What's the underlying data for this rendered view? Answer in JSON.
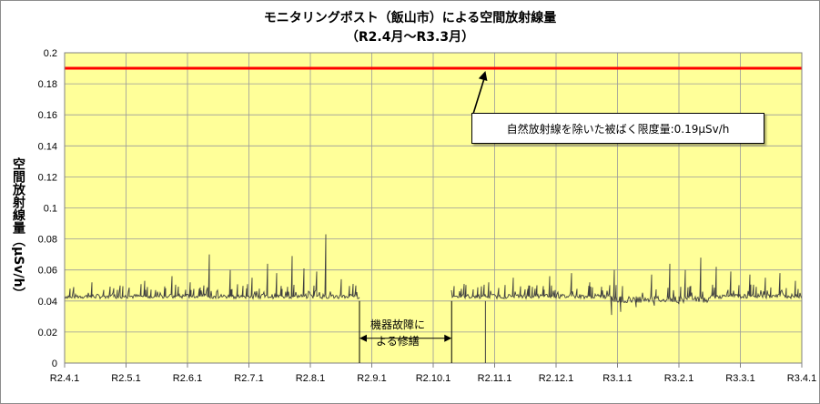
{
  "chart_data": {
    "type": "line",
    "title": "モニタリングポスト（飯山市）による空間放射線量",
    "subtitle": "（R2.4月～R3.3月）",
    "ylabel": "空間放射線量（μSv/h）",
    "xlabel": "",
    "ylim": [
      0,
      0.2
    ],
    "yticks": [
      0,
      0.02,
      0.04,
      0.06,
      0.08,
      0.1,
      0.12,
      0.14,
      0.16,
      0.18,
      0.2
    ],
    "ytick_labels": [
      "0",
      "0.02",
      "0.04",
      "0.06",
      "0.08",
      "0.1",
      "0.12",
      "0.14",
      "0.16",
      "0.18",
      "0.2"
    ],
    "xticks": [
      "R2.4.1",
      "R2.5.1",
      "R2.6.1",
      "R2.7.1",
      "R2.8.1",
      "R2.9.1",
      "R2.10.1",
      "R2.11.1",
      "R2.12.1",
      "R3.1.1",
      "R3.2.1",
      "R3.3.1",
      "R3.4.1"
    ],
    "grid": true,
    "background": "#ffff99",
    "series": [
      {
        "color": "#404040",
        "segments": [
          {
            "start_month": 0,
            "end_month": 4.8,
            "baseline": 0.043,
            "spikes": [
              {
                "month": 0.15,
                "value": 0.049
              },
              {
                "month": 0.45,
                "value": 0.052
              },
              {
                "month": 0.9,
                "value": 0.05
              },
              {
                "month": 1.3,
                "value": 0.053
              },
              {
                "month": 1.75,
                "value": 0.056
              },
              {
                "month": 2.05,
                "value": 0.052
              },
              {
                "month": 2.35,
                "value": 0.07
              },
              {
                "month": 2.7,
                "value": 0.06
              },
              {
                "month": 3.05,
                "value": 0.055
              },
              {
                "month": 3.3,
                "value": 0.064
              },
              {
                "month": 3.45,
                "value": 0.058
              },
              {
                "month": 3.7,
                "value": 0.069
              },
              {
                "month": 3.9,
                "value": 0.061
              },
              {
                "month": 4.1,
                "value": 0.059
              },
              {
                "month": 4.25,
                "value": 0.083
              },
              {
                "month": 4.5,
                "value": 0.054
              },
              {
                "month": 4.7,
                "value": 0.051
              }
            ]
          },
          {
            "start_month": 6.3,
            "end_month": 12,
            "baseline": 0.043,
            "spikes": [
              {
                "month": 6.5,
                "value": 0.051
              },
              {
                "month": 6.9,
                "value": 0.052
              },
              {
                "month": 7.3,
                "value": 0.055
              },
              {
                "month": 7.55,
                "value": 0.05
              },
              {
                "month": 7.9,
                "value": 0.056
              },
              {
                "month": 8.25,
                "value": 0.058
              },
              {
                "month": 8.55,
                "value": 0.052
              },
              {
                "month": 8.95,
                "value": 0.06
              },
              {
                "month": 9.3,
                "value": 0.066
              },
              {
                "month": 9.55,
                "value": 0.057
              },
              {
                "month": 9.85,
                "value": 0.064
              },
              {
                "month": 10.1,
                "value": 0.06
              },
              {
                "month": 10.35,
                "value": 0.068
              },
              {
                "month": 10.6,
                "value": 0.062
              },
              {
                "month": 10.85,
                "value": 0.059
              },
              {
                "month": 11.15,
                "value": 0.057
              },
              {
                "month": 11.4,
                "value": 0.055
              },
              {
                "month": 11.65,
                "value": 0.058
              },
              {
                "month": 11.9,
                "value": 0.053
              }
            ],
            "dips": [
              {
                "month": 8.9,
                "value": 0.031
              },
              {
                "month": 9.05,
                "value": 0.033
              },
              {
                "month": 9.3,
                "value": 0.036
              },
              {
                "month": 9.6,
                "value": 0.037
              },
              {
                "month": 10.0,
                "value": 0.038
              },
              {
                "month": 10.4,
                "value": 0.039
              }
            ]
          }
        ]
      }
    ],
    "reference_line": {
      "value": 0.19,
      "color": "#ff0000"
    },
    "annotations": [
      {
        "text": "自然放射線を除いた被ばく限度量:0.19μSv/h",
        "arrow_to_month": 6.85,
        "arrow_to_value": 0.19
      },
      {
        "text": "機器故障による修繕",
        "from_month": 4.8,
        "to_month": 6.3,
        "value": 0.016
      }
    ]
  },
  "labels": {
    "callout": "自然放射線を除いた被ばく限度量:0.19μSv/h",
    "gap_line1": "機器故障に",
    "gap_line2": "よる修繕"
  }
}
